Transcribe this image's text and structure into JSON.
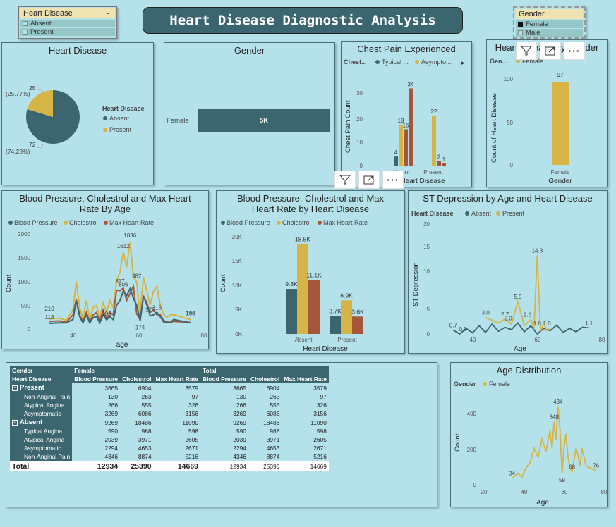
{
  "title": "Heart Disease Diagnostic Analysis",
  "colors": {
    "teal": "#3b6670",
    "gold": "#d6b445",
    "rust": "#a6573a",
    "bg": "#b4e1ea"
  },
  "slicer_hd": {
    "label": "Heart Disease",
    "items": [
      "Absent",
      "Present"
    ]
  },
  "slicer_gender": {
    "label": "Gender",
    "items": [
      "Female",
      "Male"
    ]
  },
  "pie_hd": {
    "title": "Heart Disease",
    "legend_title": "Heart Disease",
    "legend": [
      "Absent",
      "Present"
    ],
    "label_present_count": "25",
    "label_present_pct": "(25.77%)",
    "label_absent_count": "72",
    "label_absent_pct": "(74.23%)"
  },
  "gender_card": {
    "title": "Gender",
    "category": "Female",
    "value_label": "5K"
  },
  "chest_pain": {
    "title": "Chest Pain Experienced",
    "legend_title": "Chest...",
    "legend": [
      "Typical ...",
      "Asympto..."
    ],
    "ylabel": "Chest Pain Count",
    "xlabel": "Heart Disease",
    "x_ticks": [
      "Absent",
      "Present"
    ],
    "y_ticks": [
      "0",
      "10",
      "20",
      "30"
    ]
  },
  "hd_gender": {
    "title": "Heart Disease by Gender",
    "legend_title": "Gen...",
    "legend": [
      "Female"
    ],
    "ylabel": "Count of Heart Disease",
    "xlabel": "Gender",
    "y_ticks": [
      "0",
      "50",
      "100"
    ]
  },
  "bp_age": {
    "title": "Blood Pressure, Cholestrol and Max Heart Rate By Age",
    "legend": [
      "Blood Pressure",
      "Cholestrol",
      "Max Heart Rate"
    ],
    "ylabel": "Count",
    "xlabel": "age",
    "y_ticks": [
      "0",
      "500",
      "1000",
      "1500",
      "2000"
    ],
    "x_ticks": [
      "40",
      "60",
      "80"
    ]
  },
  "bp_hd": {
    "title": "Blood Pressure, Cholestrol and Max Heart Rate by Heart Disease",
    "legend": [
      "Blood Pressure",
      "Cholestrol",
      "Max Heart Rate"
    ],
    "ylabel": "Count",
    "xlabel": "Heart Disease",
    "y_ticks": [
      "0K",
      "5K",
      "10K",
      "15K",
      "20K"
    ]
  },
  "st_dep": {
    "title": "ST Depression by Age and Heart Disease",
    "legend_title": "Heart Disease",
    "legend": [
      "Absent",
      "Present"
    ],
    "ylabel": "ST Depression",
    "xlabel": "Age",
    "y_ticks": [
      "0",
      "5",
      "10",
      "15",
      "20"
    ],
    "x_ticks": [
      "40",
      "60",
      "80"
    ]
  },
  "age_dist": {
    "title": "Age Distribution",
    "legend_title": "Gender",
    "legend": [
      "Female"
    ],
    "ylabel": "Count",
    "xlabel": "Age",
    "y_ticks": [
      "0",
      "200",
      "400"
    ],
    "x_ticks": [
      "20",
      "40",
      "60",
      "80"
    ]
  },
  "matrix": {
    "col_group": [
      "Gender",
      "Female",
      "Total"
    ],
    "headers": [
      "Heart Disease",
      "Blood Pressure",
      "Cholestrol",
      "Max Heart Rate",
      "Blood Pressure",
      "Cholestrol",
      "Max Heart Rate"
    ],
    "rows": [
      {
        "label": "Present",
        "group": true,
        "v": [
          "3665",
          "6904",
          "3579",
          "3665",
          "6904",
          "3579"
        ]
      },
      {
        "label": "Non-Anginal Pain",
        "v": [
          "130",
          "263",
          "97",
          "130",
          "263",
          "97"
        ]
      },
      {
        "label": "Atypical Angina",
        "v": [
          "266",
          "555",
          "326",
          "266",
          "555",
          "326"
        ]
      },
      {
        "label": "Asymptomatic",
        "v": [
          "3269",
          "6086",
          "3156",
          "3269",
          "6086",
          "3156"
        ]
      },
      {
        "label": "Absent",
        "group": true,
        "v": [
          "9269",
          "18486",
          "11090",
          "9269",
          "18486",
          "11090"
        ]
      },
      {
        "label": "Typical Angina",
        "v": [
          "590",
          "988",
          "598",
          "590",
          "988",
          "598"
        ]
      },
      {
        "label": "Atypical Angina",
        "v": [
          "2039",
          "3971",
          "2605",
          "2039",
          "3971",
          "2605"
        ]
      },
      {
        "label": "Asymptomatic",
        "v": [
          "2294",
          "4653",
          "2671",
          "2294",
          "4653",
          "2671"
        ]
      },
      {
        "label": "Non-Anginal Pain",
        "v": [
          "4346",
          "8874",
          "5216",
          "4346",
          "8874",
          "5216"
        ]
      }
    ],
    "total": {
      "label": "Total",
      "v": [
        "12934",
        "25390",
        "14669",
        "12934",
        "25390",
        "14669"
      ]
    }
  },
  "chart_data": [
    {
      "type": "pie",
      "title": "Heart Disease",
      "categories": [
        "Absent",
        "Present"
      ],
      "values": [
        72,
        25
      ],
      "percent": [
        74.23,
        25.77
      ]
    },
    {
      "type": "bar",
      "title": "Gender",
      "categories": [
        "Female"
      ],
      "values": [
        5000
      ],
      "value_label": "5K"
    },
    {
      "type": "bar",
      "title": "Chest Pain Experienced",
      "ylabel": "Chest Pain Count",
      "xlabel": "Heart Disease",
      "categories": [
        "Absent",
        "Present"
      ],
      "ylim": [
        0,
        36
      ],
      "series": [
        {
          "values": [
            4,
            0
          ],
          "labels": [
            "4",
            ""
          ]
        },
        {
          "values": [
            18,
            22
          ],
          "labels": [
            "18",
            "22"
          ]
        },
        {
          "values": [
            16,
            2
          ],
          "labels": [
            "16",
            "2"
          ]
        },
        {
          "values": [
            34,
            1
          ],
          "labels": [
            "34",
            "1"
          ]
        }
      ]
    },
    {
      "type": "bar",
      "title": "Heart Disease by Gender",
      "ylabel": "Count of Heart Disease",
      "xlabel": "Gender",
      "categories": [
        "Female"
      ],
      "values": [
        97
      ],
      "ylim": [
        0,
        110
      ]
    },
    {
      "type": "line",
      "title": "Blood Pressure, Cholestrol and Max Heart Rate By Age",
      "xlabel": "age",
      "ylabel": "Count",
      "xlim": [
        30,
        80
      ],
      "ylim": [
        0,
        2000
      ],
      "x": [
        34,
        37,
        39,
        41,
        42,
        43,
        44,
        45,
        46,
        47,
        48,
        49,
        50,
        51,
        52,
        53,
        54,
        55,
        56,
        57,
        58,
        59,
        60,
        61,
        62,
        63,
        64,
        65,
        66,
        67,
        68,
        69,
        70,
        71,
        76
      ],
      "series": [
        {
          "name": "Blood Pressure",
          "values": [
            118,
            130,
            130,
            200,
            600,
            260,
            130,
            300,
            130,
            240,
            260,
            130,
            300,
            196,
            260,
            200,
            500,
            600,
            800,
            700,
            850,
            650,
            500,
            174,
            680,
            560,
            275,
            300,
            350,
            260,
            150,
            130,
            140,
            200,
            130
          ]
        },
        {
          "name": "Cholestrol",
          "values": [
            210,
            230,
            180,
            400,
            1000,
            450,
            200,
            600,
            200,
            450,
            500,
            250,
            550,
            350,
            600,
            450,
            1000,
            1200,
            1612,
            1300,
            1836,
            1100,
            982,
            300,
            1100,
            800,
            500,
            800,
            900,
            500,
            300,
            250,
            290,
            300,
            197
          ]
        },
        {
          "name": "Max Heart Rate",
          "values": [
            160,
            170,
            140,
            300,
            620,
            300,
            150,
            350,
            150,
            300,
            350,
            170,
            400,
            200,
            350,
            300,
            817,
            806,
            855,
            600,
            750,
            900,
            315,
            200,
            700,
            500,
            350,
            400,
            300,
            300,
            180,
            150,
            140,
            160,
            140
          ]
        }
      ],
      "labels": [
        "118",
        "210",
        "196",
        "817",
        "806",
        "1612",
        "1836",
        "982",
        "174",
        "275",
        "315",
        "197",
        "140"
      ]
    },
    {
      "type": "bar",
      "title": "Blood Pressure, Cholestrol and Max Heart Rate by Heart Disease",
      "xlabel": "Heart Disease",
      "ylabel": "Count",
      "ylim": [
        0,
        20000
      ],
      "categories": [
        "Absent",
        "Present"
      ],
      "series": [
        {
          "name": "Blood Pressure",
          "values": [
            9269,
            3665
          ],
          "labels": [
            "9.3K",
            "3.7K"
          ]
        },
        {
          "name": "Cholestrol",
          "values": [
            18486,
            6904
          ],
          "labels": [
            "18.5K",
            "6.9K"
          ]
        },
        {
          "name": "Max Heart Rate",
          "values": [
            11090,
            3579
          ],
          "labels": [
            "11.1K",
            "3.6K"
          ]
        }
      ]
    },
    {
      "type": "line",
      "title": "ST Depression by Age and Heart Disease",
      "xlabel": "Age",
      "ylabel": "ST Depression",
      "xlim": [
        30,
        80
      ],
      "ylim": [
        0,
        20
      ],
      "series": [
        {
          "name": "Absent",
          "x": [
            34,
            36,
            38,
            40,
            42,
            44,
            46,
            48,
            50,
            52,
            54,
            56,
            58,
            60,
            62,
            64,
            66,
            68,
            70,
            72,
            74,
            76
          ],
          "values": [
            0.7,
            0.0,
            1.0,
            0.2,
            1.5,
            0.3,
            1.8,
            0.5,
            1.2,
            0.8,
            2.0,
            0.4,
            1.5,
            0.0,
            1.0,
            0.6,
            1.6,
            0.3,
            1.0,
            0.4,
            1.2,
            1.1
          ]
        },
        {
          "name": "Present",
          "x": [
            44,
            48,
            50,
            52,
            54,
            56,
            58,
            59,
            60,
            61,
            62,
            63,
            64
          ],
          "values": [
            3.0,
            2.0,
            2.7,
            1.8,
            5.9,
            1.5,
            2.6,
            1.0,
            14.3,
            0.5,
            2.0,
            0.6,
            1.0
          ]
        }
      ],
      "labels": [
        "0.7",
        "0.0",
        "3.0",
        "2.7",
        "2.0",
        "5.9",
        "2.6",
        "14.3",
        "1.0",
        "1.0",
        "1.1"
      ]
    },
    {
      "type": "line",
      "title": "Age Distribution",
      "xlabel": "Age",
      "ylabel": "Count",
      "xlim": [
        20,
        80
      ],
      "ylim": [
        0,
        500
      ],
      "x": [
        34,
        37,
        39,
        41,
        43,
        45,
        47,
        49,
        51,
        53,
        54,
        55,
        56,
        57,
        58,
        59,
        60,
        61,
        62,
        63,
        64,
        65,
        66,
        67,
        68,
        69,
        70,
        71,
        76
      ],
      "series": [
        {
          "name": "Female",
          "values": [
            34,
            60,
            40,
            90,
            120,
            200,
            150,
            250,
            180,
            300,
            200,
            348,
            250,
            434,
            300,
            59,
            200,
            280,
            150,
            90,
            68,
            130,
            200,
            160,
            100,
            200,
            150,
            100,
            76
          ]
        }
      ],
      "labels": [
        "34",
        "348",
        "434",
        "59",
        "68",
        "76"
      ]
    }
  ]
}
